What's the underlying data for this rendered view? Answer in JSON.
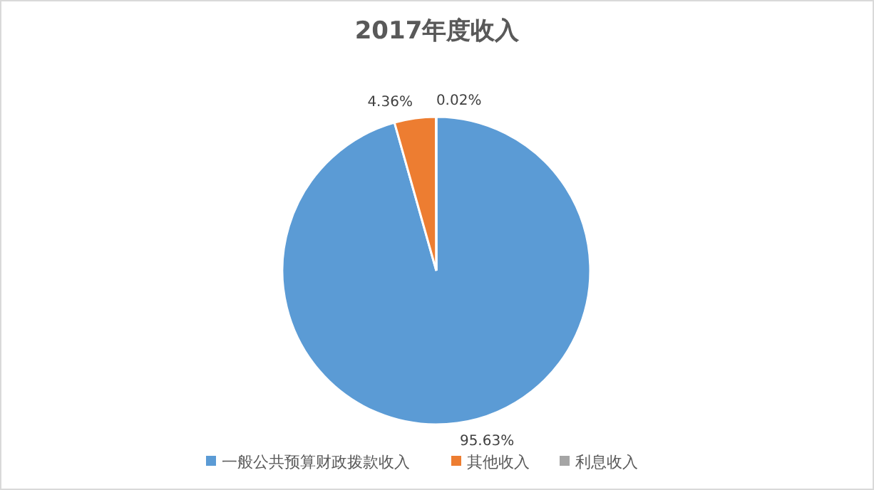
{
  "chart_data": {
    "type": "pie",
    "title": "2017年度收入",
    "categories": [
      "一般公共预算财政拨款收入",
      "其他收入",
      "利息收入"
    ],
    "values": [
      95.63,
      4.36,
      0.02
    ],
    "value_labels": [
      "95.63%",
      "4.36%",
      "0.02%"
    ],
    "colors": [
      "#5b9bd5",
      "#ed7d31",
      "#a5a5a5"
    ],
    "legend": "bottom"
  }
}
